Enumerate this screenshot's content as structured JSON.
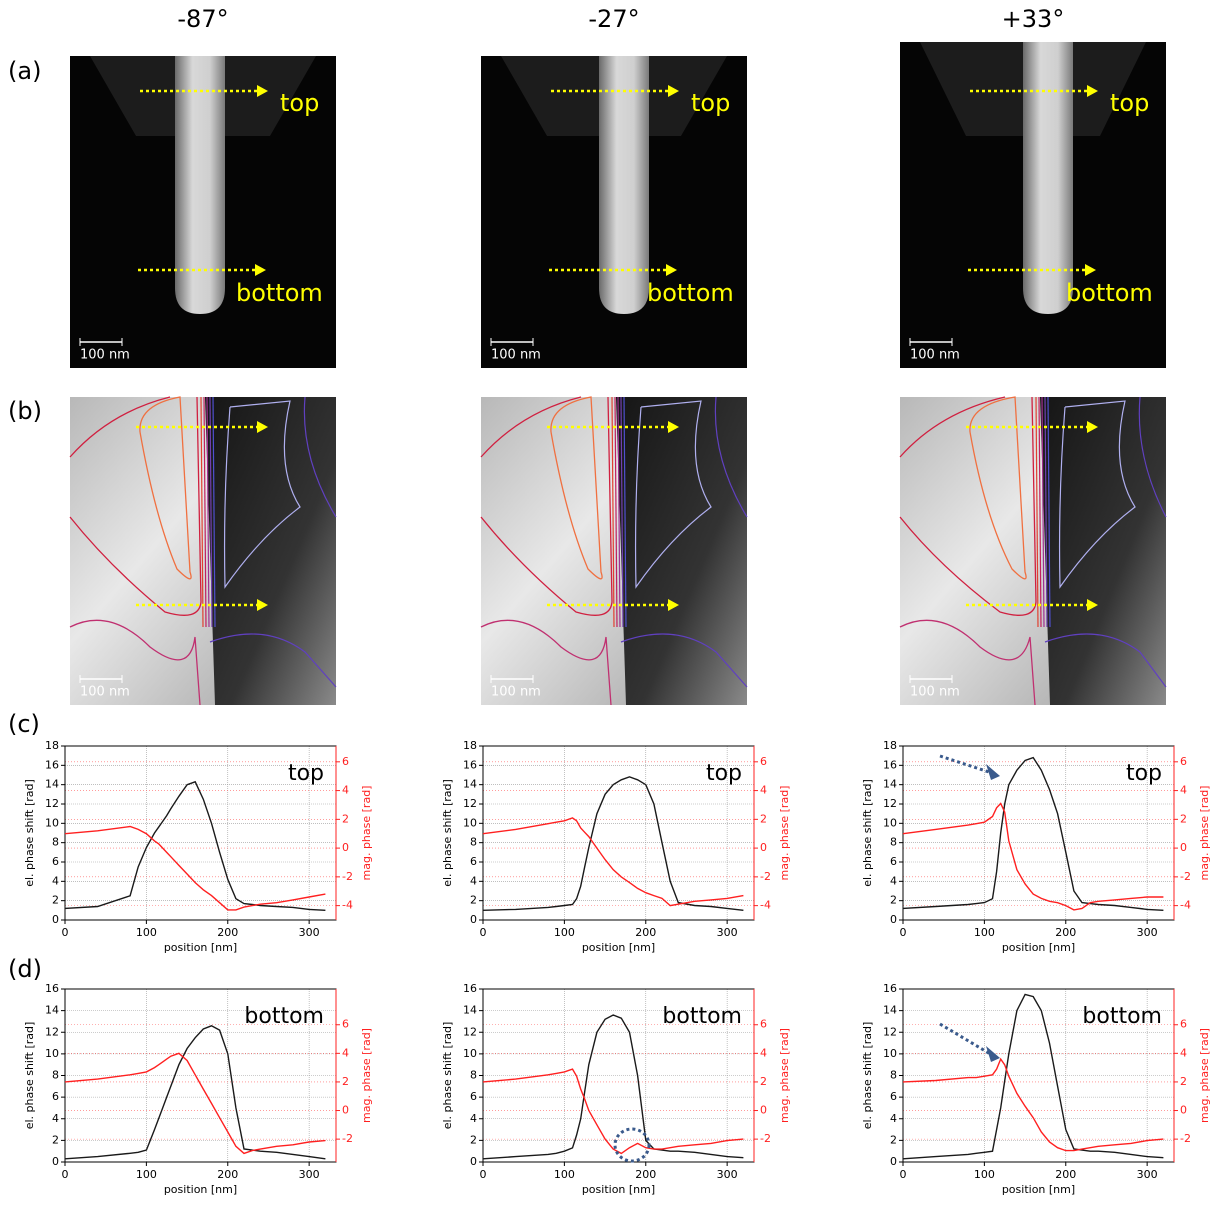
{
  "header": {
    "columns": [
      "-87°",
      "-27°",
      "+33°"
    ]
  },
  "rows": [
    {
      "label": "(a)",
      "images": [
        {
          "top": "top",
          "bottom": "bottom",
          "scale_bar": "100 nm"
        },
        {
          "top": "top",
          "bottom": "bottom",
          "scale_bar": "100 nm"
        },
        {
          "top": "top",
          "bottom": "bottom",
          "scale_bar": "100 nm"
        }
      ]
    },
    {
      "label": "(b)",
      "images": [
        {
          "scale_bar": "100 nm"
        },
        {
          "scale_bar": "100 nm"
        },
        {
          "scale_bar": "100 nm"
        }
      ]
    },
    {
      "label": "(c)"
    },
    {
      "label": "(d)"
    }
  ],
  "chart_data": [
    {
      "type": "line",
      "annotation": "top",
      "xlabel": "position [nm]",
      "ylabel": "el. phase shift [rad]",
      "y2label": "mag. phase [rad]",
      "x": [
        0,
        40,
        80,
        90,
        100,
        110,
        115,
        120,
        125,
        130,
        140,
        150,
        160,
        170,
        180,
        190,
        200,
        210,
        220,
        230,
        240,
        260,
        280,
        300,
        320
      ],
      "xlim": [
        0,
        333
      ],
      "xticks": [
        0,
        100,
        200,
        300
      ],
      "ylim": [
        0,
        18
      ],
      "yticks": [
        0,
        2,
        4,
        6,
        8,
        10,
        12,
        14,
        16,
        18
      ],
      "y2lim": [
        -5,
        7.1
      ],
      "y2ticks": [
        -4,
        -2,
        0,
        2,
        4,
        6
      ],
      "grid": true,
      "series": [
        {
          "color": "#1a1a1a",
          "values": [
            1.2,
            1.4,
            2.5,
            5.5,
            7.5,
            9,
            9.6,
            10.2,
            10.8,
            11.5,
            12.8,
            14,
            14.3,
            12.5,
            10,
            7,
            4.2,
            2.2,
            1.7,
            1.6,
            1.5,
            1.4,
            1.3,
            1.1,
            1.0
          ]
        },
        {
          "color": "#ff2020",
          "axis": "y2",
          "values": [
            1.0,
            1.2,
            1.5,
            1.3,
            1.0,
            0.5,
            0.3,
            0.0,
            -0.3,
            -0.6,
            -1.2,
            -1.8,
            -2.4,
            -2.9,
            -3.3,
            -3.8,
            -4.3,
            -4.3,
            -4.1,
            -4.0,
            -3.9,
            -3.8,
            -3.6,
            -3.4,
            -3.2
          ]
        }
      ]
    },
    {
      "type": "line",
      "annotation": "top",
      "xlabel": "position [nm]",
      "ylabel": "el. phase shift [rad]",
      "y2label": "mag. phase [rad]",
      "x": [
        0,
        40,
        80,
        90,
        100,
        110,
        115,
        120,
        125,
        130,
        140,
        150,
        160,
        170,
        180,
        190,
        200,
        210,
        220,
        230,
        240,
        260,
        280,
        300,
        320
      ],
      "xlim": [
        0,
        333
      ],
      "xticks": [
        0,
        100,
        200,
        300
      ],
      "ylim": [
        0,
        18
      ],
      "yticks": [
        0,
        2,
        4,
        6,
        8,
        10,
        12,
        14,
        16,
        18
      ],
      "y2lim": [
        -5,
        7.1
      ],
      "y2ticks": [
        -4,
        -2,
        0,
        2,
        4,
        6
      ],
      "grid": true,
      "series": [
        {
          "color": "#1a1a1a",
          "values": [
            1.0,
            1.1,
            1.3,
            1.4,
            1.5,
            1.6,
            2.2,
            3.5,
            5.5,
            7.5,
            11,
            13,
            14,
            14.5,
            14.8,
            14.5,
            14,
            12,
            8,
            4,
            1.8,
            1.5,
            1.4,
            1.2,
            1.0
          ]
        },
        {
          "color": "#ff2020",
          "axis": "y2",
          "values": [
            1.0,
            1.3,
            1.7,
            1.8,
            1.9,
            2.1,
            1.9,
            1.4,
            1.1,
            0.8,
            0.0,
            -0.8,
            -1.5,
            -2.0,
            -2.4,
            -2.8,
            -3.1,
            -3.3,
            -3.5,
            -4.0,
            -3.9,
            -3.7,
            -3.6,
            -3.5,
            -3.3
          ]
        }
      ]
    },
    {
      "type": "line",
      "annotation": "top",
      "xlabel": "position [nm]",
      "ylabel": "el. phase shift [rad]",
      "y2label": "mag. phase [rad]",
      "x": [
        0,
        40,
        80,
        90,
        100,
        110,
        115,
        120,
        125,
        130,
        140,
        150,
        160,
        170,
        180,
        190,
        200,
        210,
        220,
        230,
        240,
        260,
        280,
        300,
        320
      ],
      "xlim": [
        0,
        333
      ],
      "xticks": [
        0,
        100,
        200,
        300
      ],
      "ylim": [
        0,
        18
      ],
      "yticks": [
        0,
        2,
        4,
        6,
        8,
        10,
        12,
        14,
        16,
        18
      ],
      "y2lim": [
        -5,
        7.1
      ],
      "y2ticks": [
        -4,
        -2,
        0,
        2,
        4,
        6
      ],
      "grid": true,
      "series": [
        {
          "color": "#1a1a1a",
          "values": [
            1.2,
            1.4,
            1.6,
            1.7,
            1.8,
            2.2,
            5,
            9,
            12,
            14,
            15.5,
            16.5,
            16.8,
            15.5,
            13.5,
            11,
            7,
            3,
            1.8,
            1.7,
            1.6,
            1.5,
            1.3,
            1.1,
            1.0
          ]
        },
        {
          "color": "#ff2020",
          "axis": "y2",
          "values": [
            1.0,
            1.3,
            1.6,
            1.7,
            1.8,
            2.2,
            2.8,
            3.1,
            2.5,
            0.5,
            -1.5,
            -2.5,
            -3.2,
            -3.5,
            -3.7,
            -3.8,
            -4.0,
            -4.3,
            -4.2,
            -3.8,
            -3.7,
            -3.6,
            -3.5,
            -3.4,
            -3.4
          ]
        }
      ]
    },
    {
      "type": "line",
      "annotation": "bottom",
      "xlabel": "position [nm]",
      "ylabel": "el. phase shift [rad]",
      "y2label": "mag. phase [rad]",
      "x": [
        0,
        40,
        80,
        90,
        100,
        110,
        115,
        120,
        125,
        130,
        140,
        150,
        160,
        170,
        180,
        190,
        200,
        210,
        220,
        230,
        240,
        260,
        280,
        300,
        320
      ],
      "xlim": [
        0,
        333
      ],
      "xticks": [
        0,
        100,
        200,
        300
      ],
      "ylim": [
        0,
        16
      ],
      "yticks": [
        0,
        2,
        4,
        6,
        8,
        10,
        12,
        14,
        16
      ],
      "y2lim": [
        -3.6,
        8.5
      ],
      "y2ticks": [
        -2,
        0,
        2,
        4,
        6
      ],
      "grid": true,
      "series": [
        {
          "color": "#1a1a1a",
          "values": [
            0.3,
            0.5,
            0.8,
            0.9,
            1.1,
            3,
            4,
            5,
            6,
            7,
            9,
            10.5,
            11.5,
            12.3,
            12.6,
            12.2,
            10,
            5,
            1.2,
            1.1,
            1.0,
            0.9,
            0.7,
            0.5,
            0.3
          ]
        },
        {
          "color": "#ff2020",
          "axis": "y2",
          "values": [
            2.0,
            2.2,
            2.5,
            2.6,
            2.7,
            3.0,
            3.2,
            3.4,
            3.6,
            3.8,
            4.0,
            3.5,
            2.5,
            1.5,
            0.5,
            -0.5,
            -1.5,
            -2.5,
            -3.0,
            -2.8,
            -2.7,
            -2.5,
            -2.4,
            -2.2,
            -2.1
          ]
        }
      ]
    },
    {
      "type": "line",
      "annotation": "bottom",
      "xlabel": "position [nm]",
      "ylabel": "el. phase shift [rad]",
      "y2label": "mag. phase [rad]",
      "x": [
        0,
        40,
        80,
        90,
        100,
        110,
        115,
        120,
        125,
        130,
        140,
        150,
        160,
        170,
        180,
        190,
        200,
        210,
        220,
        230,
        240,
        260,
        280,
        300,
        320
      ],
      "xlim": [
        0,
        333
      ],
      "xticks": [
        0,
        100,
        200,
        300
      ],
      "ylim": [
        0,
        16
      ],
      "yticks": [
        0,
        2,
        4,
        6,
        8,
        10,
        12,
        14,
        16
      ],
      "y2lim": [
        -3.6,
        8.5
      ],
      "y2ticks": [
        -2,
        0,
        2,
        4,
        6
      ],
      "grid": true,
      "series": [
        {
          "color": "#1a1a1a",
          "values": [
            0.3,
            0.5,
            0.7,
            0.8,
            1.0,
            1.3,
            2.5,
            4,
            6.5,
            9,
            12,
            13.2,
            13.6,
            13.3,
            12,
            8,
            2,
            1.2,
            1.1,
            1.0,
            1.0,
            0.9,
            0.7,
            0.5,
            0.4
          ]
        },
        {
          "color": "#ff2020",
          "axis": "y2",
          "values": [
            2.0,
            2.2,
            2.5,
            2.6,
            2.7,
            2.9,
            2.4,
            1.5,
            0.8,
            0.0,
            -1.0,
            -2.0,
            -2.7,
            -3.0,
            -2.6,
            -2.3,
            -2.6,
            -2.7,
            -2.7,
            -2.6,
            -2.5,
            -2.4,
            -2.3,
            -2.1,
            -2.0
          ]
        }
      ]
    },
    {
      "type": "line",
      "annotation": "bottom",
      "xlabel": "position [nm]",
      "ylabel": "el. phase shift [rad]",
      "y2label": "mag. phase [rad]",
      "x": [
        0,
        40,
        80,
        90,
        100,
        110,
        115,
        120,
        125,
        130,
        140,
        150,
        160,
        170,
        180,
        190,
        200,
        210,
        220,
        230,
        240,
        260,
        280,
        300,
        320
      ],
      "xlim": [
        0,
        333
      ],
      "xticks": [
        0,
        100,
        200,
        300
      ],
      "ylim": [
        0,
        16
      ],
      "yticks": [
        0,
        2,
        4,
        6,
        8,
        10,
        12,
        14,
        16
      ],
      "y2lim": [
        -3.6,
        8.5
      ],
      "y2ticks": [
        -2,
        0,
        2,
        4,
        6
      ],
      "grid": true,
      "series": [
        {
          "color": "#1a1a1a",
          "values": [
            0.3,
            0.5,
            0.7,
            0.8,
            0.9,
            1.0,
            3,
            5,
            7.5,
            10,
            14,
            15.5,
            15.3,
            14,
            11,
            7,
            3,
            1.2,
            1.1,
            1.0,
            1.0,
            0.9,
            0.7,
            0.5,
            0.4
          ]
        },
        {
          "color": "#ff2020",
          "axis": "y2",
          "values": [
            2.0,
            2.1,
            2.3,
            2.3,
            2.4,
            2.5,
            2.9,
            3.6,
            3.2,
            2.4,
            1.2,
            0.3,
            -0.5,
            -1.5,
            -2.2,
            -2.6,
            -2.8,
            -2.8,
            -2.7,
            -2.6,
            -2.5,
            -2.4,
            -2.3,
            -2.1,
            -2.0
          ]
        }
      ]
    }
  ]
}
